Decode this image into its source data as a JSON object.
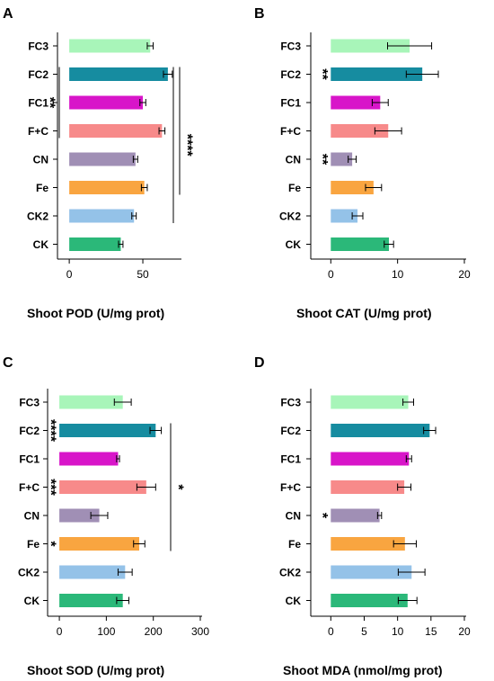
{
  "chart_data": [
    {
      "type": "bar",
      "orientation": "horizontal",
      "panel": "A",
      "xlabel": "Shoot POD (U/mg prot)",
      "categories": [
        "FC3",
        "FC2",
        "FC1",
        "F+C",
        "CN",
        "Fe",
        "CK2",
        "CK"
      ],
      "values": [
        55,
        67,
        50,
        63,
        45,
        51,
        44,
        35
      ],
      "errors": [
        2,
        3,
        2,
        2,
        1.5,
        2,
        1.5,
        1.5
      ],
      "xlim": [
        -8,
        75
      ],
      "xticks": [
        0,
        50
      ],
      "colors": [
        "#a8f5b9",
        "#168ca0",
        "#d815c9",
        "#f78a8a",
        "#a08fb5",
        "#f9a540",
        "#94c2e8",
        "#2bb879"
      ],
      "annotations": [
        {
          "text": "**",
          "rows": [
            1,
            3
          ]
        },
        {
          "text": "****",
          "rows": [
            1,
            6
          ]
        }
      ]
    },
    {
      "type": "bar",
      "orientation": "horizontal",
      "panel": "B",
      "xlabel": "Shoot CAT (U/mg prot)",
      "categories": [
        "FC3",
        "FC2",
        "FC1",
        "F+C",
        "CN",
        "Fe",
        "CK2",
        "CK"
      ],
      "values": [
        11.8,
        13.7,
        7.4,
        8.6,
        3.2,
        6.4,
        4.0,
        8.7
      ],
      "errors": [
        3.3,
        2.4,
        1.2,
        2.0,
        0.6,
        1.2,
        0.8,
        0.7
      ],
      "xlim": [
        -3,
        20
      ],
      "xticks": [
        0,
        10,
        20
      ],
      "colors": [
        "#a8f5b9",
        "#168ca0",
        "#d815c9",
        "#f78a8a",
        "#a08fb5",
        "#f9a540",
        "#94c2e8",
        "#2bb879"
      ],
      "annotations": [
        {
          "text": "**",
          "row": 1
        },
        {
          "text": "**",
          "row": 4
        }
      ]
    },
    {
      "type": "bar",
      "orientation": "horizontal",
      "panel": "C",
      "xlabel": "Shoot SOD (U/mg prot)",
      "categories": [
        "FC3",
        "FC2",
        "FC1",
        "F+C",
        "CN",
        "Fe",
        "CK2",
        "CK"
      ],
      "values": [
        135,
        205,
        125,
        185,
        85,
        170,
        140,
        135
      ],
      "errors": [
        18,
        12,
        3,
        20,
        18,
        12,
        15,
        13
      ],
      "xlim": [
        -25,
        300
      ],
      "xticks": [
        0,
        100,
        200,
        300
      ],
      "colors": [
        "#a8f5b9",
        "#168ca0",
        "#d815c9",
        "#f78a8a",
        "#a08fb5",
        "#f9a540",
        "#94c2e8",
        "#2bb879"
      ],
      "annotations": [
        {
          "text": "****",
          "row": 1
        },
        {
          "text": "***",
          "row": 3
        },
        {
          "text": "*",
          "row": 5
        },
        {
          "text": "*",
          "rows": [
            1,
            5
          ]
        }
      ]
    },
    {
      "type": "bar",
      "orientation": "horizontal",
      "panel": "D",
      "xlabel": "Shoot MDA (nmol/mg prot)",
      "categories": [
        "FC3",
        "FC2",
        "FC1",
        "F+C",
        "CN",
        "Fe",
        "CK2",
        "CK"
      ],
      "values": [
        11.6,
        14.8,
        11.7,
        11.0,
        7.3,
        11.1,
        12.1,
        11.5
      ],
      "errors": [
        0.8,
        0.9,
        0.4,
        1.0,
        0.3,
        1.7,
        2.0,
        1.4
      ],
      "xlim": [
        -3,
        20
      ],
      "xticks": [
        0,
        5,
        10,
        15,
        20
      ],
      "colors": [
        "#a8f5b9",
        "#168ca0",
        "#d815c9",
        "#f78a8a",
        "#a08fb5",
        "#f9a540",
        "#94c2e8",
        "#2bb879"
      ],
      "annotations": [
        {
          "text": "*",
          "row": 4
        }
      ]
    }
  ]
}
